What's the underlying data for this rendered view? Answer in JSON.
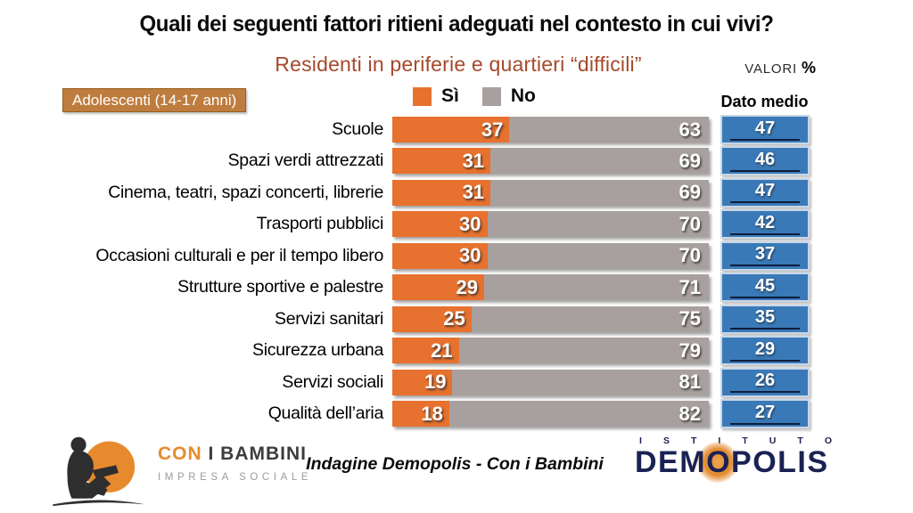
{
  "header": {
    "valori_label": "VALORI",
    "percent_sign": "%",
    "cohort_badge": "Adolescenti (14-17 anni)"
  },
  "chart_data": {
    "type": "bar",
    "orientation": "horizontal",
    "stacked": true,
    "unit": "percent",
    "xlim": [
      0,
      100
    ],
    "grid": false,
    "legend_position": "top-center",
    "title": "Quali dei seguenti fattori ritieni adeguati nel contesto in cui vivi?",
    "subtitle": "Residenti in periferie e quartieri “difficili”",
    "categories": [
      "Scuole",
      "Spazi verdi attrezzati",
      "Cinema, teatri, spazi concerti, librerie",
      "Trasporti pubblici",
      "Occasioni culturali e per il tempo libero",
      "Strutture sportive e palestre",
      "Servizi sanitari",
      "Sicurezza urbana",
      "Servizi sociali",
      "Qualità dell’aria"
    ],
    "series": [
      {
        "name": "Sì",
        "color": "#e7712e",
        "values": [
          37,
          31,
          31,
          30,
          30,
          29,
          25,
          21,
          19,
          18
        ]
      },
      {
        "name": "No",
        "color": "#a8a09e",
        "values": [
          63,
          69,
          69,
          70,
          70,
          71,
          75,
          79,
          81,
          82
        ]
      }
    ],
    "dato_medio": {
      "label": "Dato medio",
      "color": "#3a79b7",
      "values": [
        47,
        46,
        47,
        42,
        37,
        45,
        35,
        29,
        26,
        27
      ]
    }
  },
  "colors": {
    "si_orange": "#e7712e",
    "no_gray": "#a8a09e",
    "dato_blue": "#3a79b7",
    "badge_bronze": "#be7c3e",
    "subtitle_sienna": "#a5492b",
    "logo_navy": "#1a2254",
    "brand_orange": "#e78a2e"
  },
  "footer": {
    "brand_con": "CON",
    "brand_bambini": " I BAMBINI",
    "brand_subtitle": "IMPRESA SOCIALE",
    "caption": "Indagine Demopolis - Con i Bambini",
    "istituto_label": "ISTITUTO",
    "demopolis_label": "DEMOPOLIS"
  }
}
